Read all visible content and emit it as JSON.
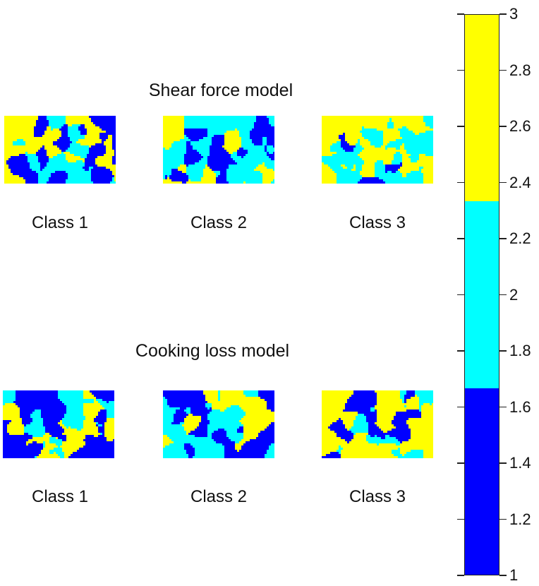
{
  "panels": [
    {
      "title": "Shear force model",
      "tiles": [
        {
          "label": "Class 1",
          "seed": 11,
          "weights": [
            0.36,
            0.22,
            0.42
          ]
        },
        {
          "label": "Class 2",
          "seed": 23,
          "weights": [
            0.36,
            0.52,
            0.12
          ]
        },
        {
          "label": "Class 3",
          "seed": 37,
          "weights": [
            0.08,
            0.42,
            0.5
          ]
        }
      ]
    },
    {
      "title": "Cooking loss model",
      "tiles": [
        {
          "label": "Class 1",
          "seed": 41,
          "weights": [
            0.44,
            0.26,
            0.3
          ]
        },
        {
          "label": "Class 2",
          "seed": 53,
          "weights": [
            0.4,
            0.42,
            0.18
          ]
        },
        {
          "label": "Class 3",
          "seed": 67,
          "weights": [
            0.18,
            0.22,
            0.6
          ]
        }
      ]
    }
  ],
  "chart_data": {
    "type": "heatmap",
    "colorbar": {
      "min": 1,
      "max": 3,
      "ticks": [
        "3",
        "2.8",
        "2.6",
        "2.4",
        "2.2",
        "2",
        "1.8",
        "1.6",
        "1.4",
        "1.2",
        "1"
      ],
      "class_colors": [
        "#0000ff",
        "#00ffff",
        "#ffff00"
      ],
      "class_values": [
        1,
        2,
        3
      ]
    }
  }
}
